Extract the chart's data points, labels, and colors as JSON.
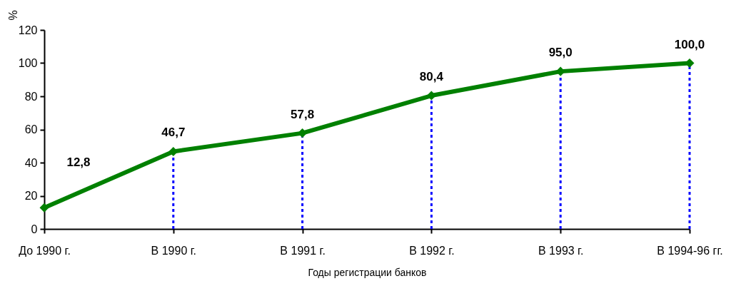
{
  "chart_data": {
    "type": "line",
    "xlabel": "Годы регистрации банков",
    "ylabel": "%",
    "categories": [
      "До 1990 г.",
      "В 1990 г.",
      "В 1991 г.",
      "В 1992 г.",
      "В 1993 г.",
      "В 1994-96 гг."
    ],
    "series": [
      {
        "color": "#008000",
        "values": [
          12.8,
          46.7,
          57.8,
          80.4,
          95.0,
          100.0
        ],
        "value_labels": [
          "12,8",
          "46,7",
          "57,8",
          "80,4",
          "95,0",
          "100,0"
        ]
      }
    ],
    "ylim": [
      0,
      120
    ],
    "yticks": [
      0,
      20,
      40,
      60,
      80,
      100,
      120
    ],
    "marker": "diamond",
    "line_style": "solid",
    "ref_lines": [
      {
        "axis": "x",
        "value": "В 1990 г.",
        "color": "#0000ff",
        "line_style": "dotted"
      },
      {
        "axis": "x",
        "value": "В 1991 г.",
        "color": "#0000ff",
        "line_style": "dotted"
      },
      {
        "axis": "x",
        "value": "В 1992 г.",
        "color": "#0000ff",
        "line_style": "dotted"
      },
      {
        "axis": "x",
        "value": "В 1993 г.",
        "color": "#0000ff",
        "line_style": "dotted"
      },
      {
        "axis": "x",
        "value": "В 1994-96 гг.",
        "color": "#0000ff",
        "line_style": "dotted"
      }
    ]
  }
}
